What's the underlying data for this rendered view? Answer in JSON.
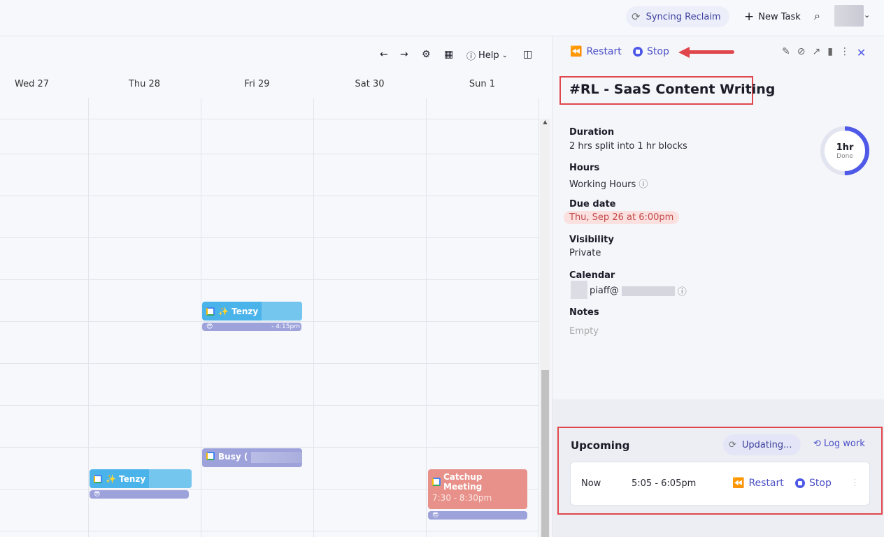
{
  "topbar": {
    "sync_label": "Syncing Reclaim",
    "new_task_label": "New Task"
  },
  "calendar": {
    "toolbar": {
      "help_label": "Help"
    },
    "days": [
      "Wed 27",
      "Thu 28",
      "Fri 29",
      "Sat 30",
      "Sun 1"
    ],
    "events": [
      {
        "title": "✨ Tenzy",
        "day": "Fri 29"
      },
      {
        "time_fragment": "- 4:15pm",
        "day": "Fri 29"
      },
      {
        "title": "Busy (",
        "day": "Fri 29"
      },
      {
        "title": "✨ Tenzy",
        "day": "Thu 28"
      },
      {
        "title": "Catchup Meeting",
        "time": "7:30 - 8:30pm",
        "day": "Sun 1",
        "color": "#e8918a"
      }
    ]
  },
  "task": {
    "restart_label": "Restart",
    "stop_label": "Stop",
    "title": "#RL - SaaS Content Writing",
    "progress": {
      "value": "1hr",
      "caption": "Done",
      "fraction": 0.5
    },
    "fields": {
      "duration_label": "Duration",
      "duration_value": "2 hrs split into 1 hr blocks",
      "hours_label": "Hours",
      "hours_value": "Working Hours",
      "due_label": "Due date",
      "due_value": "Thu, Sep 26 at 6:00pm",
      "visibility_label": "Visibility",
      "visibility_value": "Private",
      "calendar_label": "Calendar",
      "calendar_value": "piaff@",
      "notes_label": "Notes",
      "notes_value": "Empty"
    }
  },
  "upcoming": {
    "title": "Upcoming",
    "updating_label": "Updating...",
    "log_work_label": "Log work",
    "row": {
      "when": "Now",
      "time": "5:05 - 6:05pm",
      "restart_label": "Restart",
      "stop_label": "Stop"
    }
  },
  "colors": {
    "accent": "#4f59e8",
    "event_blue": "#4ab3ea",
    "event_purple": "#9da2db",
    "danger": "#e0474c"
  }
}
